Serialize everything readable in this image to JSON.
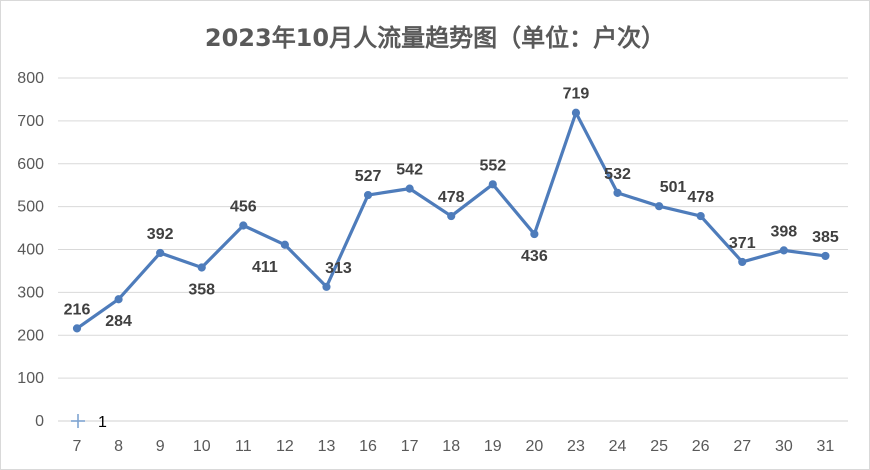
{
  "chart_data": {
    "type": "line",
    "title": "2023年10月人流量趋势图（单位：户次）",
    "xlabel": "",
    "ylabel": "",
    "categories": [
      "7",
      "8",
      "9",
      "10",
      "11",
      "12",
      "13",
      "16",
      "17",
      "18",
      "19",
      "20",
      "23",
      "24",
      "25",
      "26",
      "27",
      "30",
      "31"
    ],
    "series": [
      {
        "name": "1",
        "values": [
          216,
          284,
          392,
          358,
          456,
          411,
          313,
          527,
          542,
          478,
          552,
          436,
          719,
          532,
          501,
          478,
          371,
          398,
          385
        ],
        "color": "#4e7cbb"
      }
    ],
    "ylim": [
      0,
      800
    ],
    "yticks": [
      0,
      100,
      200,
      300,
      400,
      500,
      600,
      700,
      800
    ],
    "grid": true,
    "legend_position": "bottom-left",
    "legend_icon": "plus-icon",
    "legend_color": "#7fa4d0"
  }
}
